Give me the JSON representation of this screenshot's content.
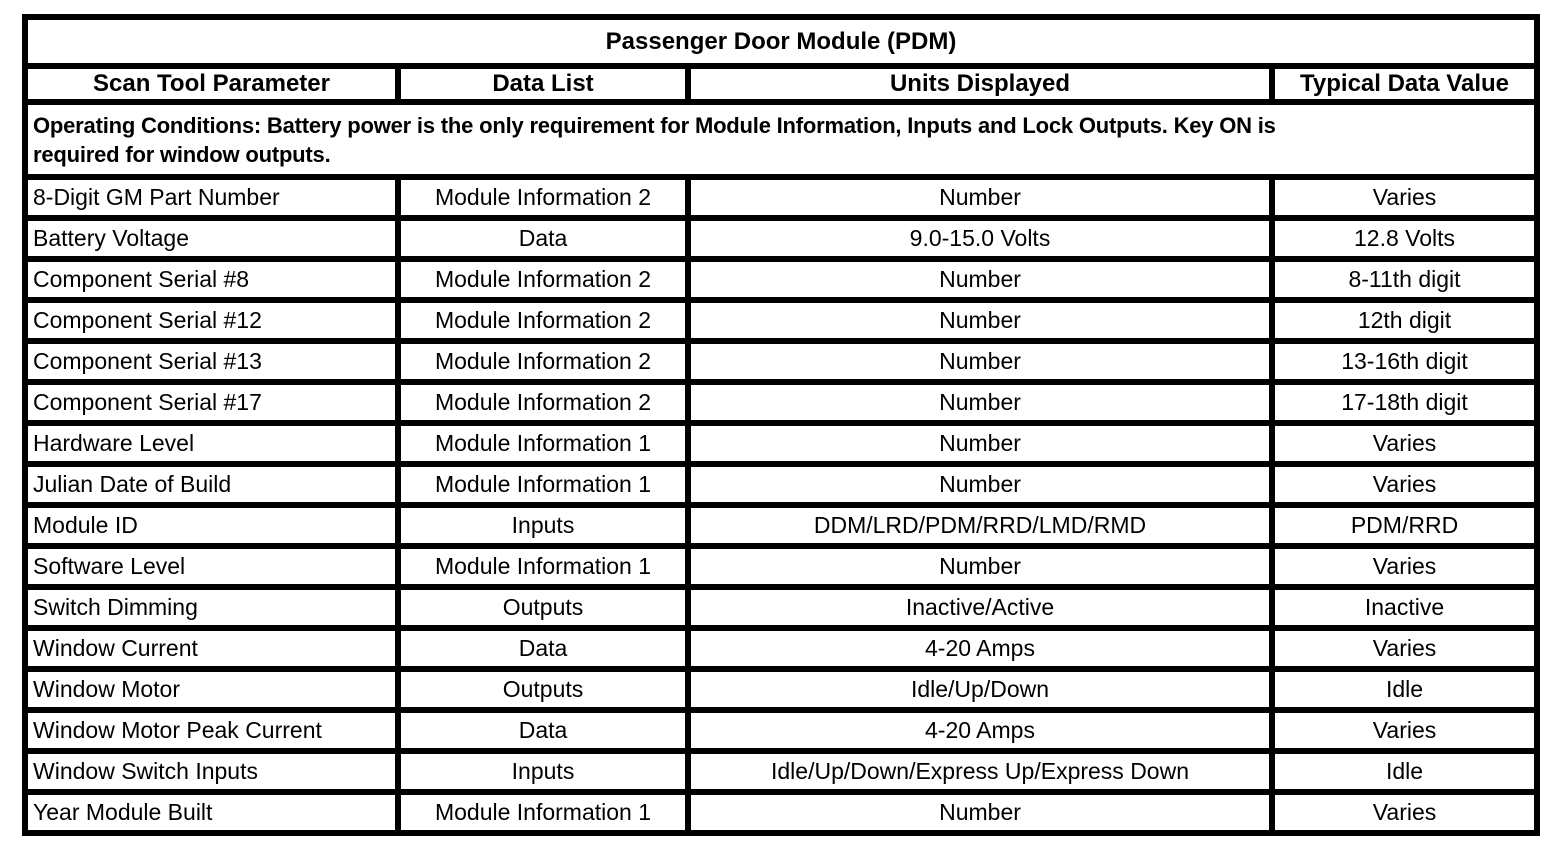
{
  "table": {
    "title": "Passenger Door Module (PDM)",
    "columns": [
      "Scan Tool Parameter",
      "Data List",
      "Units Displayed",
      "Typical Data Value"
    ],
    "operating_conditions": "Operating Conditions: Battery power is the only requirement for Module Information, Inputs and Lock Outputs. Key ON is\nrequired for window outputs.",
    "rows": [
      [
        "8-Digit GM Part Number",
        "Module Information 2",
        "Number",
        "Varies"
      ],
      [
        "Battery Voltage",
        "Data",
        "9.0-15.0 Volts",
        "12.8 Volts"
      ],
      [
        "Component Serial #8",
        "Module Information 2",
        "Number",
        "8-11th digit"
      ],
      [
        "Component Serial #12",
        "Module Information 2",
        "Number",
        "12th digit"
      ],
      [
        "Component Serial #13",
        "Module Information 2",
        "Number",
        "13-16th digit"
      ],
      [
        "Component Serial #17",
        "Module Information 2",
        "Number",
        "17-18th digit"
      ],
      [
        "Hardware Level",
        "Module Information 1",
        "Number",
        "Varies"
      ],
      [
        "Julian Date of Build",
        "Module Information 1",
        "Number",
        "Varies"
      ],
      [
        "Module ID",
        "Inputs",
        "DDM/LRD/PDM/RRD/LMD/RMD",
        "PDM/RRD"
      ],
      [
        "Software Level",
        "Module Information 1",
        "Number",
        "Varies"
      ],
      [
        "Switch Dimming",
        "Outputs",
        "Inactive/Active",
        "Inactive"
      ],
      [
        "Window Current",
        "Data",
        "4-20 Amps",
        "Varies"
      ],
      [
        "Window Motor",
        "Outputs",
        "Idle/Up/Down",
        "Idle"
      ],
      [
        "Window Motor Peak Current",
        "Data",
        "4-20 Amps",
        "Varies"
      ],
      [
        "Window Switch Inputs",
        "Inputs",
        "Idle/Up/Down/Express Up/Express Down",
        "Idle"
      ],
      [
        "Year Module Built",
        "Module Information 1",
        "Number",
        "Varies"
      ]
    ]
  }
}
